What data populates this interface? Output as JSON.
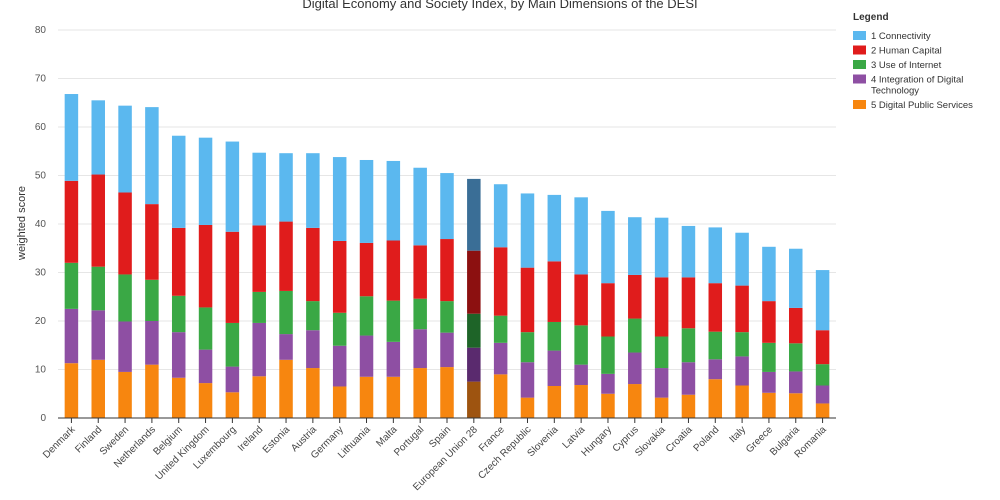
{
  "chart_data": {
    "type": "bar",
    "stacked": true,
    "title": "Digital Economy and Society Index, by Main Dimensions of the DESI",
    "ylabel": "weighted score",
    "ylim": [
      0,
      80
    ],
    "yticks": [
      0,
      10,
      20,
      30,
      40,
      50,
      60,
      70,
      80
    ],
    "grid": true,
    "legend_title": "Legend",
    "legend_position": "right",
    "highlight_category": "European Union 28",
    "categories": [
      "Denmark",
      "Finland",
      "Sweden",
      "Netherlands",
      "Belgium",
      "United Kingdom",
      "Luxembourg",
      "Ireland",
      "Estonia",
      "Austria",
      "Germany",
      "Lithuania",
      "Malta",
      "Portugal",
      "Spain",
      "European Union 28",
      "France",
      "Czech Republic",
      "Slovenia",
      "Latvia",
      "Hungary",
      "Cyprus",
      "Slovakia",
      "Croatia",
      "Poland",
      "Italy",
      "Greece",
      "Bulgaria",
      "Romania"
    ],
    "series": [
      {
        "name": "5 Digital Public Services",
        "color": "#f7860f",
        "highlight_color": "#9e5410",
        "values": [
          11.3,
          12.0,
          9.5,
          11.0,
          8.3,
          7.2,
          5.3,
          8.6,
          12.0,
          10.3,
          6.5,
          8.5,
          8.5,
          10.3,
          10.5,
          7.5,
          9.0,
          4.2,
          6.6,
          6.8,
          5.0,
          7.0,
          4.2,
          4.8,
          8.0,
          6.7,
          5.2,
          5.1,
          3.0
        ]
      },
      {
        "name": "4 Integration of Digital Technology",
        "color": "#8e4fa3",
        "highlight_color": "#5a2a6e",
        "values": [
          11.2,
          10.2,
          10.4,
          9.0,
          9.4,
          6.9,
          5.3,
          11.0,
          5.3,
          7.8,
          8.4,
          8.5,
          7.2,
          8.0,
          7.1,
          7.0,
          6.5,
          7.3,
          7.3,
          4.2,
          4.1,
          6.5,
          6.1,
          6.7,
          4.1,
          6.0,
          4.3,
          4.5,
          3.7
        ]
      },
      {
        "name": "3 Use of Internet",
        "color": "#3aa845",
        "highlight_color": "#1e6428",
        "values": [
          9.5,
          9.0,
          9.7,
          8.5,
          7.5,
          8.7,
          9.0,
          6.4,
          8.9,
          6.0,
          6.8,
          8.1,
          8.5,
          6.3,
          6.5,
          7.0,
          5.6,
          6.2,
          5.9,
          8.1,
          7.7,
          7.0,
          6.5,
          7.0,
          5.7,
          5.0,
          6.0,
          5.8,
          4.4
        ]
      },
      {
        "name": "2 Human Capital",
        "color": "#e01c1c",
        "highlight_color": "#8c1010",
        "values": [
          16.9,
          19.0,
          16.9,
          15.6,
          14.0,
          17.0,
          18.8,
          13.7,
          14.3,
          15.1,
          14.8,
          11.0,
          12.4,
          11.0,
          12.8,
          13.0,
          14.1,
          13.3,
          12.5,
          10.5,
          11.0,
          9.0,
          12.2,
          10.5,
          10.0,
          9.6,
          8.6,
          7.3,
          7.0
        ]
      },
      {
        "name": "1 Connectivity",
        "color": "#5bb8ef",
        "highlight_color": "#3a6e96",
        "values": [
          17.9,
          15.3,
          17.9,
          20.0,
          19.0,
          18.0,
          18.6,
          15.0,
          14.1,
          15.4,
          17.3,
          17.1,
          16.4,
          16.0,
          13.6,
          14.8,
          13.0,
          15.3,
          13.7,
          15.9,
          14.9,
          11.9,
          12.3,
          10.6,
          11.5,
          10.9,
          11.2,
          12.2,
          12.4
        ]
      }
    ]
  }
}
